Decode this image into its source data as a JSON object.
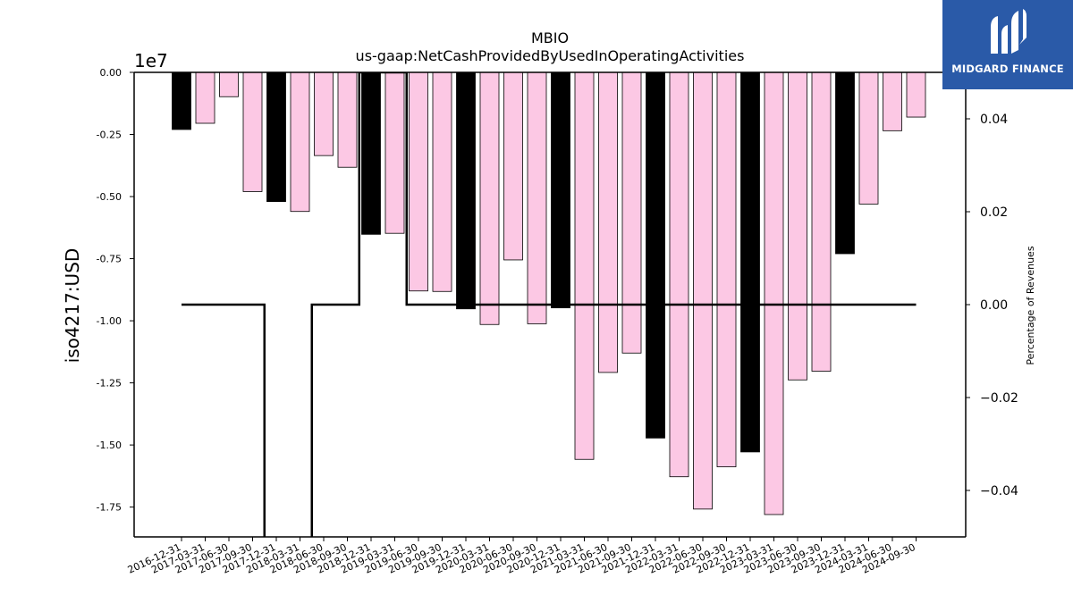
{
  "chart_data": {
    "type": "bar",
    "title": "MBIO",
    "subtitle": "us-gaap:NetCashProvidedByUsedInOperatingActivities",
    "ylabel": "iso4217:USD",
    "y2label": "Percentage of Revenues",
    "y_offset_label": "1e7",
    "ylim": [
      -18700000,
      0
    ],
    "y2lim": [
      -0.05,
      0.05
    ],
    "yticks": [
      "0.00",
      "-0.25",
      "-0.50",
      "-0.75",
      "-1.00",
      "-1.25",
      "-1.50",
      "-1.75"
    ],
    "ytick_values": [
      0,
      -2500000,
      -5000000,
      -7500000,
      -10000000,
      -12500000,
      -15000000,
      -17500000
    ],
    "y2ticks": [
      "0.04",
      "0.02",
      "0.00",
      "−0.02",
      "−0.04"
    ],
    "y2tick_values": [
      0.04,
      0.02,
      0.0,
      -0.02,
      -0.04
    ],
    "categories": [
      "2016-12-31",
      "2017-03-31",
      "2017-06-30",
      "2017-09-30",
      "2017-12-31",
      "2018-03-31",
      "2018-06-30",
      "2018-09-30",
      "2018-12-31",
      "2019-03-31",
      "2019-06-30",
      "2019-09-30",
      "2019-12-31",
      "2020-03-31",
      "2020-06-30",
      "2020-09-30",
      "2020-12-31",
      "2021-03-31",
      "2021-06-30",
      "2021-09-30",
      "2021-12-31",
      "2022-03-31",
      "2022-06-30",
      "2022-09-30",
      "2022-12-31",
      "2023-03-31",
      "2023-06-30",
      "2023-09-30",
      "2023-12-31",
      "2024-03-31",
      "2024-06-30",
      "2024-09-30"
    ],
    "values": [
      -2300000,
      -2050000,
      -980000,
      -4800000,
      -5200000,
      -5600000,
      -3350000,
      -3820000,
      -6520000,
      -6480000,
      -8800000,
      -8820000,
      -9520000,
      -10150000,
      -7550000,
      -10120000,
      -9480000,
      -15580000,
      -12080000,
      -11300000,
      -14720000,
      -16280000,
      -17580000,
      -15880000,
      -15280000,
      -17800000,
      -12380000,
      -12030000,
      -7300000,
      -5300000,
      -2350000,
      -1800000
    ],
    "annual_flags": [
      1,
      0,
      0,
      0,
      1,
      0,
      0,
      0,
      1,
      0,
      0,
      0,
      1,
      0,
      0,
      0,
      1,
      0,
      0,
      0,
      1,
      0,
      0,
      0,
      1,
      0,
      0,
      0,
      1,
      0,
      0,
      0
    ],
    "colors": {
      "annual": "#000000",
      "quarterly": "#fcc8e4",
      "edge": "#000000",
      "line": "#000000"
    },
    "pct_line": [
      0,
      0,
      0,
      0,
      null,
      null,
      0,
      0,
      0.05,
      0.05,
      0,
      0,
      0,
      0,
      0,
      0,
      0,
      0,
      0,
      0,
      0,
      0,
      0,
      0,
      0,
      0,
      0,
      0,
      0,
      0,
      0,
      0
    ],
    "legend": "none",
    "grid": false
  },
  "logo": {
    "text": "MIDGARD FINANCE",
    "color": "#2a5aa8"
  }
}
